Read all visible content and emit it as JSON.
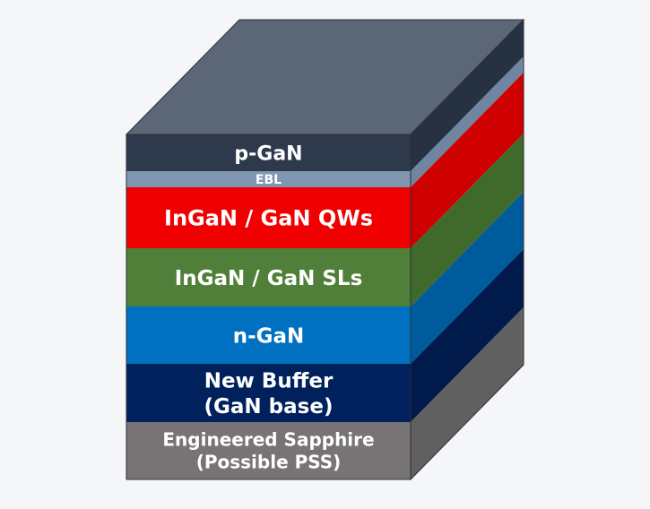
{
  "diagram": {
    "layers": [
      {
        "name": "p-GaN",
        "lines": [
          "p-GaN"
        ],
        "front": "#2e3a4b",
        "side": "#263241",
        "top": "#5b6777"
      },
      {
        "name": "EBL",
        "lines": [
          "EBL"
        ],
        "front": "#8097b1",
        "side": "#6f85a0"
      },
      {
        "name": "InGaN / GaN QWs",
        "lines": [
          "InGaN / GaN QWs"
        ],
        "front": "#f00000",
        "side": "#cf0000"
      },
      {
        "name": "InGaN / GaN SLs",
        "lines": [
          "InGaN / GaN SLs"
        ],
        "front": "#4f7f38",
        "side": "#3f6a2c"
      },
      {
        "name": "n-GaN",
        "lines": [
          "n-GaN"
        ],
        "front": "#0070c0",
        "side": "#005b9c"
      },
      {
        "name": "New Buffer (GaN base)",
        "lines": [
          "New Buffer",
          "(GaN base)"
        ],
        "front": "#00215b",
        "side": "#001a4b"
      },
      {
        "name": "Engineered Sapphire (Possible PSS)",
        "lines": [
          "Engineered Sapphire",
          "(Possible PSS)"
        ],
        "front": "#787475",
        "side": "#606060"
      }
    ]
  }
}
